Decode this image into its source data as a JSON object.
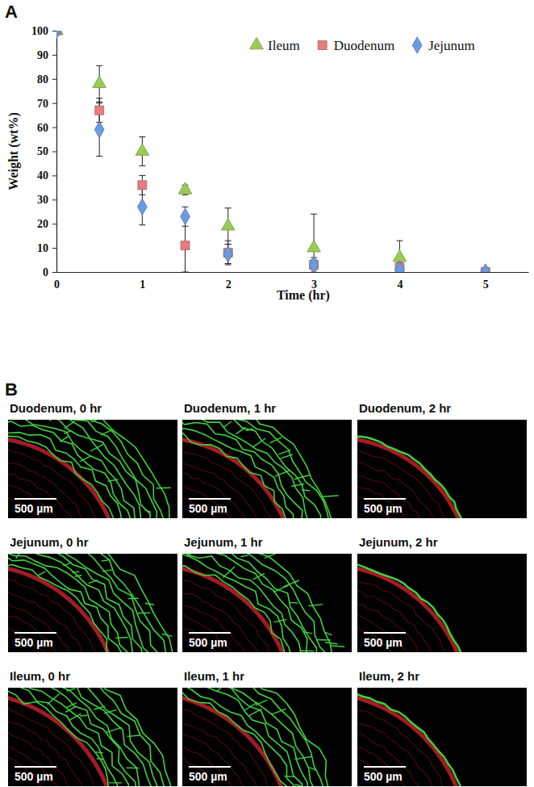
{
  "chart_data": {
    "type": "scatter",
    "x_label": "Time (hr)",
    "y_label": "Weight (wt%)",
    "x": [
      0,
      0.5,
      1,
      1.5,
      2,
      3,
      4,
      5
    ],
    "series": [
      {
        "name": "Ileum",
        "color": "#99cc55",
        "marker": "triangle",
        "values": [
          100,
          78,
          50,
          34,
          19,
          10,
          6,
          0
        ],
        "errors": [
          0,
          7.5,
          6,
          2,
          7.5,
          14,
          7,
          0
        ]
      },
      {
        "name": "Duodenum",
        "color": "#e87d7d",
        "marker": "square",
        "values": [
          100,
          67,
          36,
          11,
          8,
          3,
          2,
          0
        ],
        "errors": [
          0,
          5,
          4,
          11,
          5,
          2,
          2,
          0
        ]
      },
      {
        "name": "Jejunum",
        "color": "#6b9be0",
        "marker": "diamond",
        "values": [
          100,
          59,
          27,
          23,
          7.5,
          3,
          1,
          0
        ],
        "errors": [
          0,
          11,
          7.5,
          4,
          4,
          3,
          1,
          0
        ]
      }
    ],
    "xlim": [
      0,
      5.5
    ],
    "xticks": [
      0,
      1,
      2,
      3,
      4,
      5
    ],
    "ylim": [
      0,
      100
    ],
    "yticks": [
      0,
      10,
      20,
      30,
      40,
      50,
      60,
      70,
      80,
      90,
      100
    ],
    "grid": false,
    "legend": "top-right"
  },
  "figure": {
    "panel_labels": [
      "A",
      "B"
    ]
  },
  "panel_b": {
    "images": [
      {
        "title": "Duodenum, 0 hr",
        "scale_bar": "500 µm"
      },
      {
        "title": "Duodenum, 1 hr",
        "scale_bar": "500 µm"
      },
      {
        "title": "Duodenum, 2 hr",
        "scale_bar": "500 µm"
      },
      {
        "title": "Jejunum, 0 hr",
        "scale_bar": "500 µm"
      },
      {
        "title": "Jejunum, 1 hr",
        "scale_bar": "500 µm"
      },
      {
        "title": "Jejunum, 2 hr",
        "scale_bar": "500 µm"
      },
      {
        "title": "Ileum, 0 hr",
        "scale_bar": "500 µm"
      },
      {
        "title": "Ileum, 1 hr",
        "scale_bar": "500 µm"
      },
      {
        "title": "Ileum, 2 hr",
        "scale_bar": "500 µm"
      }
    ]
  }
}
